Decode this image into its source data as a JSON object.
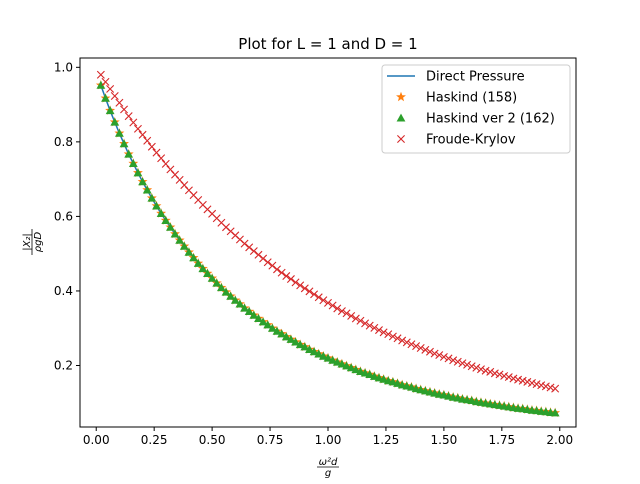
{
  "chart_data": {
    "type": "line",
    "title": "Plot for L = 1 and D = 1",
    "xlabel": "ω²d / g",
    "xlabel_num": "ω²d",
    "xlabel_den": "g",
    "ylabel": "|X₂| / ρgD",
    "ylabel_num": "|X₂|",
    "ylabel_den": "ρgD",
    "xlim": [
      -0.07,
      2.07
    ],
    "ylim": [
      0.035,
      1.025
    ],
    "xticks": [
      0.0,
      0.25,
      0.5,
      0.75,
      1.0,
      1.25,
      1.5,
      1.75,
      2.0
    ],
    "xtick_labels": [
      "0.00",
      "0.25",
      "0.50",
      "0.75",
      "1.00",
      "1.25",
      "1.50",
      "1.75",
      "2.00"
    ],
    "yticks": [
      0.2,
      0.4,
      0.6,
      0.8,
      1.0
    ],
    "ytick_labels": [
      "0.2",
      "0.4",
      "0.6",
      "0.8",
      "1.0"
    ],
    "grid": false,
    "legend_position": "top-right",
    "x": [
      0.02,
      0.04,
      0.06,
      0.08,
      0.1,
      0.12,
      0.14,
      0.16,
      0.18,
      0.2,
      0.22,
      0.24,
      0.26,
      0.28,
      0.3,
      0.32,
      0.34,
      0.36,
      0.38,
      0.4,
      0.42,
      0.44,
      0.46,
      0.48,
      0.5,
      0.52,
      0.54,
      0.56,
      0.58,
      0.6,
      0.62,
      0.64,
      0.66,
      0.68,
      0.7,
      0.72,
      0.74,
      0.76,
      0.78,
      0.8,
      0.82,
      0.84,
      0.86,
      0.88,
      0.9,
      0.92,
      0.94,
      0.96,
      0.98,
      1.0,
      1.02,
      1.04,
      1.06,
      1.08,
      1.1,
      1.12,
      1.14,
      1.16,
      1.18,
      1.2,
      1.22,
      1.24,
      1.26,
      1.28,
      1.3,
      1.32,
      1.34,
      1.36,
      1.38,
      1.4,
      1.42,
      1.44,
      1.46,
      1.48,
      1.5,
      1.52,
      1.54,
      1.56,
      1.58,
      1.6,
      1.62,
      1.64,
      1.66,
      1.68,
      1.7,
      1.72,
      1.74,
      1.76,
      1.78,
      1.8,
      1.82,
      1.84,
      1.86,
      1.88,
      1.9,
      1.92,
      1.94,
      1.96,
      1.98
    ],
    "series": [
      {
        "name": "Direct Pressure",
        "style": "line",
        "color": "#1f77b4",
        "values": [
          0.952,
          0.917,
          0.884,
          0.853,
          0.823,
          0.795,
          0.767,
          0.742,
          0.717,
          0.693,
          0.671,
          0.649,
          0.628,
          0.608,
          0.589,
          0.571,
          0.553,
          0.536,
          0.52,
          0.504,
          0.489,
          0.474,
          0.46,
          0.447,
          0.434,
          0.421,
          0.409,
          0.397,
          0.386,
          0.375,
          0.365,
          0.354,
          0.345,
          0.335,
          0.326,
          0.317,
          0.309,
          0.3,
          0.292,
          0.285,
          0.277,
          0.27,
          0.263,
          0.256,
          0.25,
          0.243,
          0.237,
          0.231,
          0.225,
          0.22,
          0.214,
          0.209,
          0.204,
          0.199,
          0.194,
          0.189,
          0.184,
          0.18,
          0.176,
          0.171,
          0.167,
          0.163,
          0.159,
          0.156,
          0.152,
          0.148,
          0.145,
          0.142,
          0.138,
          0.135,
          0.132,
          0.129,
          0.126,
          0.123,
          0.121,
          0.118,
          0.115,
          0.113,
          0.11,
          0.108,
          0.106,
          0.103,
          0.101,
          0.099,
          0.097,
          0.095,
          0.093,
          0.091,
          0.089,
          0.087,
          0.085,
          0.084,
          0.082,
          0.08,
          0.079,
          0.077,
          0.076,
          0.074,
          0.073
        ]
      },
      {
        "name": "Haskind (158)",
        "style": "marker-star",
        "color": "#ff7f0e",
        "values": [
          0.952,
          0.917,
          0.884,
          0.853,
          0.823,
          0.795,
          0.767,
          0.742,
          0.717,
          0.693,
          0.671,
          0.649,
          0.628,
          0.608,
          0.589,
          0.571,
          0.553,
          0.536,
          0.52,
          0.504,
          0.489,
          0.474,
          0.46,
          0.447,
          0.434,
          0.421,
          0.409,
          0.397,
          0.386,
          0.375,
          0.365,
          0.354,
          0.345,
          0.335,
          0.326,
          0.317,
          0.309,
          0.3,
          0.292,
          0.285,
          0.277,
          0.27,
          0.263,
          0.256,
          0.25,
          0.243,
          0.237,
          0.231,
          0.225,
          0.22,
          0.214,
          0.209,
          0.204,
          0.199,
          0.194,
          0.189,
          0.184,
          0.18,
          0.176,
          0.171,
          0.167,
          0.163,
          0.159,
          0.156,
          0.152,
          0.148,
          0.145,
          0.142,
          0.138,
          0.135,
          0.132,
          0.129,
          0.126,
          0.123,
          0.121,
          0.118,
          0.115,
          0.113,
          0.11,
          0.108,
          0.106,
          0.103,
          0.101,
          0.099,
          0.097,
          0.095,
          0.093,
          0.091,
          0.089,
          0.087,
          0.085,
          0.084,
          0.082,
          0.08,
          0.079,
          0.077,
          0.076,
          0.074,
          0.073
        ]
      },
      {
        "name": "Haskind ver 2 (162)",
        "style": "marker-triangle",
        "color": "#2ca02c",
        "values": [
          0.952,
          0.917,
          0.884,
          0.853,
          0.823,
          0.795,
          0.767,
          0.742,
          0.717,
          0.693,
          0.671,
          0.649,
          0.628,
          0.608,
          0.589,
          0.571,
          0.553,
          0.536,
          0.52,
          0.504,
          0.489,
          0.474,
          0.46,
          0.447,
          0.434,
          0.421,
          0.409,
          0.397,
          0.386,
          0.375,
          0.365,
          0.354,
          0.345,
          0.335,
          0.326,
          0.317,
          0.309,
          0.3,
          0.292,
          0.285,
          0.277,
          0.27,
          0.263,
          0.256,
          0.25,
          0.243,
          0.237,
          0.231,
          0.225,
          0.22,
          0.214,
          0.209,
          0.204,
          0.199,
          0.194,
          0.189,
          0.184,
          0.18,
          0.176,
          0.171,
          0.167,
          0.163,
          0.159,
          0.156,
          0.152,
          0.148,
          0.145,
          0.142,
          0.138,
          0.135,
          0.132,
          0.129,
          0.126,
          0.123,
          0.121,
          0.118,
          0.115,
          0.113,
          0.11,
          0.108,
          0.106,
          0.103,
          0.101,
          0.099,
          0.097,
          0.095,
          0.093,
          0.091,
          0.089,
          0.087,
          0.085,
          0.084,
          0.082,
          0.08,
          0.079,
          0.077,
          0.076,
          0.074,
          0.073
        ]
      },
      {
        "name": "Froude-Krylov",
        "style": "marker-x",
        "color": "#d62728",
        "values": [
          0.98,
          0.961,
          0.942,
          0.923,
          0.905,
          0.887,
          0.869,
          0.852,
          0.835,
          0.819,
          0.803,
          0.787,
          0.771,
          0.756,
          0.741,
          0.726,
          0.712,
          0.698,
          0.684,
          0.67,
          0.657,
          0.644,
          0.631,
          0.619,
          0.607,
          0.595,
          0.583,
          0.571,
          0.56,
          0.549,
          0.538,
          0.527,
          0.517,
          0.507,
          0.497,
          0.487,
          0.477,
          0.468,
          0.458,
          0.449,
          0.44,
          0.432,
          0.423,
          0.415,
          0.407,
          0.399,
          0.391,
          0.383,
          0.375,
          0.368,
          0.361,
          0.353,
          0.346,
          0.34,
          0.333,
          0.326,
          0.32,
          0.313,
          0.307,
          0.301,
          0.295,
          0.289,
          0.284,
          0.278,
          0.273,
          0.267,
          0.262,
          0.257,
          0.252,
          0.247,
          0.242,
          0.237,
          0.232,
          0.228,
          0.223,
          0.219,
          0.214,
          0.21,
          0.206,
          0.202,
          0.198,
          0.194,
          0.19,
          0.186,
          0.183,
          0.179,
          0.176,
          0.172,
          0.169,
          0.165,
          0.162,
          0.159,
          0.156,
          0.153,
          0.15,
          0.147,
          0.144,
          0.141,
          0.138
        ]
      }
    ]
  }
}
